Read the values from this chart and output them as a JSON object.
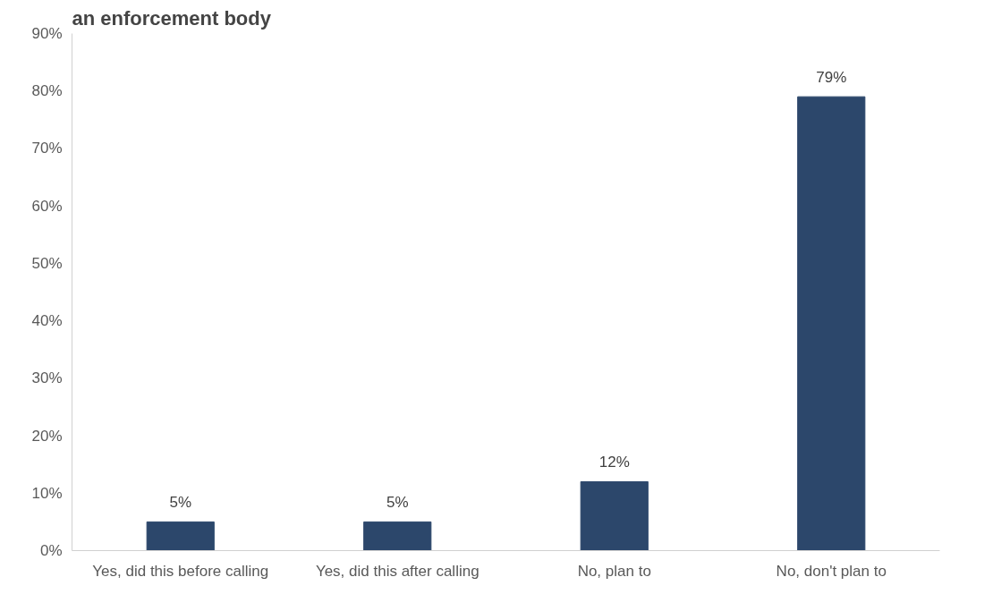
{
  "chart_data": {
    "type": "bar",
    "title": "an enforcement body",
    "categories": [
      "Yes, did this before calling",
      "Yes, did this after calling",
      "No, plan to",
      "No, don't plan to"
    ],
    "values": [
      5,
      5,
      12,
      79
    ],
    "color": "#2c476b",
    "ylim": [
      0,
      90
    ],
    "yticks": [
      {
        "value": 0,
        "label": "0%"
      },
      {
        "value": 10,
        "label": "10%"
      },
      {
        "value": 20,
        "label": "20%"
      },
      {
        "value": 30,
        "label": "30%"
      },
      {
        "value": 40,
        "label": "40%"
      },
      {
        "value": 50,
        "label": "50%"
      },
      {
        "value": 60,
        "label": "60%"
      },
      {
        "value": 70,
        "label": "70%"
      },
      {
        "value": 80,
        "label": "80%"
      },
      {
        "value": 90,
        "label": "90%"
      }
    ],
    "value_labels": [
      "5%",
      "5%",
      "12%",
      "79%"
    ],
    "grid": false
  }
}
